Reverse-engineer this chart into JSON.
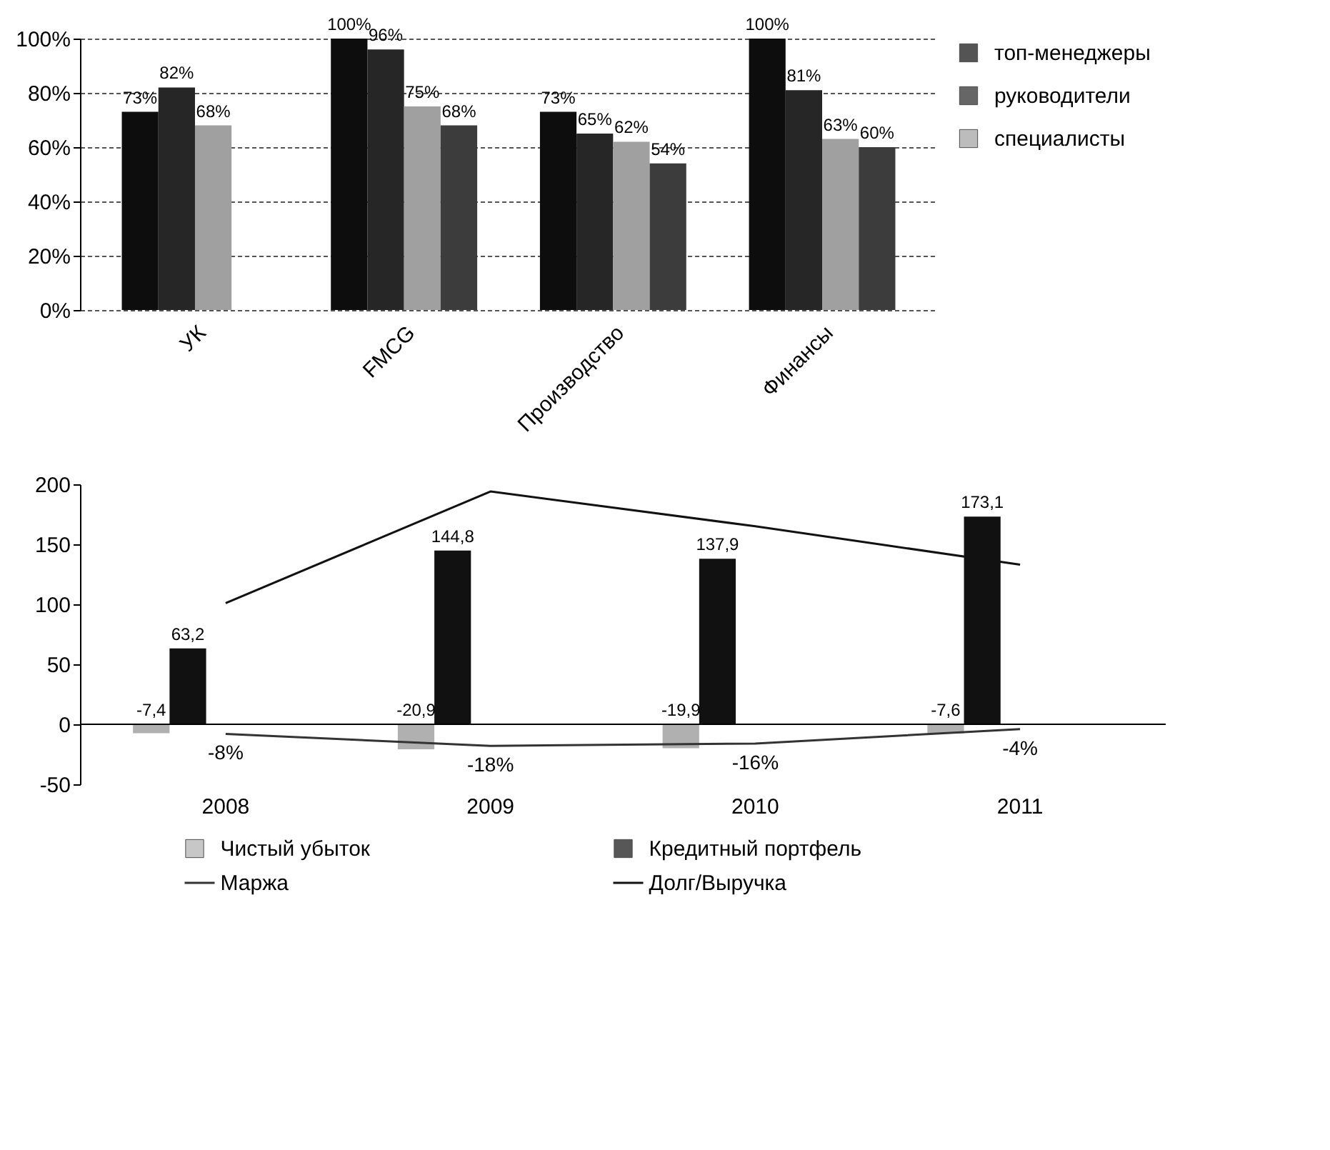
{
  "chart_data": [
    {
      "type": "bar",
      "categories": [
        "УК",
        "FMCG",
        "Производство",
        "Финансы"
      ],
      "ylim": [
        0,
        100
      ],
      "yticks": [
        {
          "value": 0,
          "label": "0%"
        },
        {
          "value": 20,
          "label": "20%"
        },
        {
          "value": 40,
          "label": "40%"
        },
        {
          "value": 60,
          "label": "60%"
        },
        {
          "value": 80,
          "label": "80%"
        },
        {
          "value": 100,
          "label": "100%"
        }
      ],
      "grid": "y",
      "legend": "right",
      "series": [
        {
          "name": "топ-менеджеры",
          "color": "#0d0d0d",
          "values": [
            73,
            100,
            73,
            100
          ],
          "value_labels": [
            "73%",
            "100%",
            "73%",
            "100%"
          ]
        },
        {
          "name": "руководители",
          "color": "#262626",
          "values": [
            82,
            96,
            65,
            81
          ],
          "value_labels": [
            "82%",
            "96%",
            "65%",
            "81%"
          ]
        },
        {
          "name": "специалисты",
          "color": "#a0a0a0",
          "values": [
            68,
            75,
            62,
            63
          ],
          "value_labels": [
            "68%",
            "75%",
            "62%",
            "63%"
          ]
        },
        {
          "color": "#3c3c3c",
          "values": [
            null,
            68,
            54,
            60
          ],
          "value_labels": [
            null,
            "68%",
            "54%",
            "60%"
          ]
        }
      ]
    },
    {
      "type": "bar",
      "categories": [
        "2008",
        "2009",
        "2010",
        "2011"
      ],
      "ylim": [
        -50,
        200
      ],
      "yticks": [
        -50,
        0,
        50,
        100,
        150,
        200
      ],
      "grid": false,
      "legend": "bottom",
      "ref_lines": [
        {
          "axis": "y",
          "value": 0
        }
      ],
      "series": [
        {
          "name": "Чистый убыток",
          "color": "#b0b0b0",
          "values": [
            -7.4,
            -20.9,
            -19.9,
            -7.6
          ],
          "value_labels": [
            "-7,4",
            "-20,9",
            "-19,9",
            "-7,6"
          ]
        },
        {
          "name": "Кредитный портфель",
          "color": "#111111",
          "values": [
            63.2,
            144.8,
            137.9,
            173.1
          ],
          "value_labels": [
            "63,2",
            "144,8",
            "137,9",
            "173,1"
          ]
        },
        {
          "name": "Маржа",
          "type": "line",
          "color": "#333333",
          "values": [
            -8,
            -18,
            -16,
            -4
          ],
          "value_labels": [
            "-8%",
            "-18%",
            "-16%",
            "-4%"
          ]
        },
        {
          "name": "Долг/Выручка",
          "type": "line",
          "color": "#111111",
          "values": [
            101,
            194,
            165,
            133
          ]
        }
      ]
    }
  ]
}
